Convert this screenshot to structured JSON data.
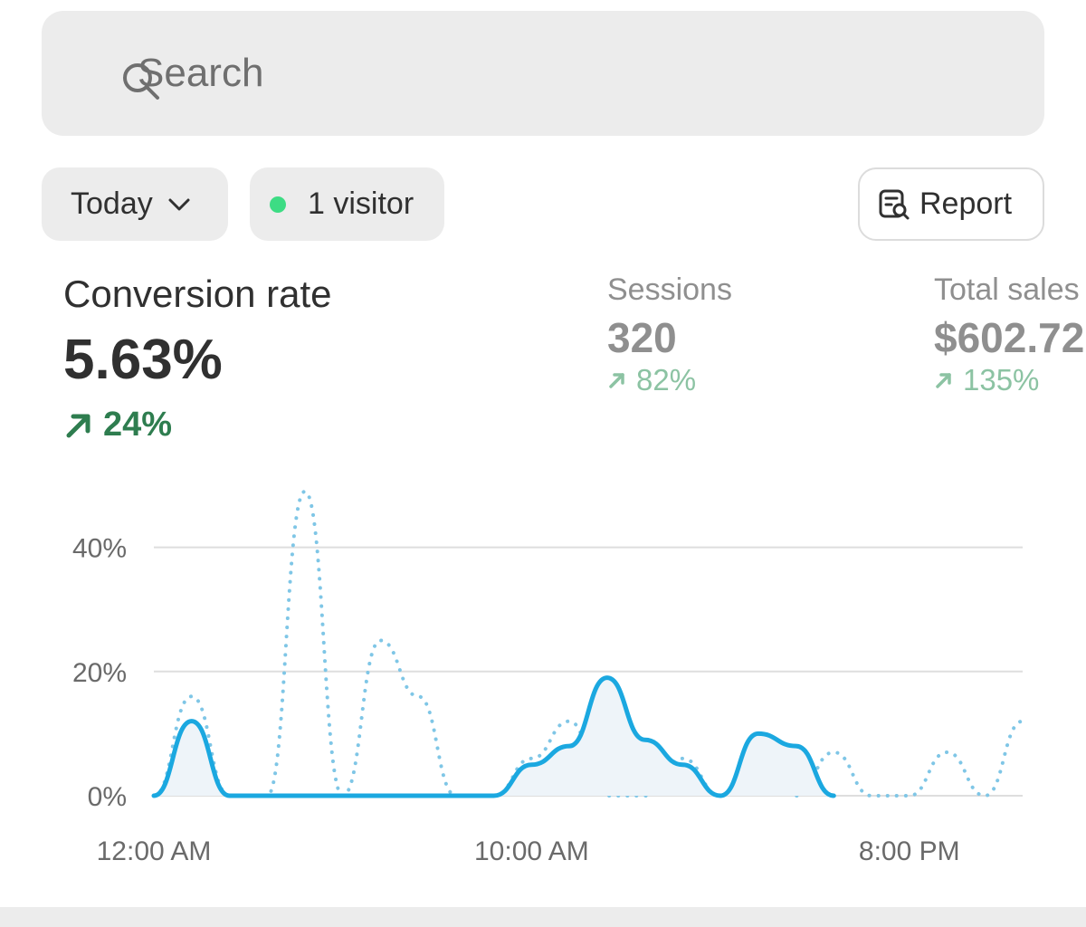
{
  "search": {
    "placeholder": "Search",
    "icon": "search-icon"
  },
  "filters": {
    "date_label": "Today",
    "visitor_label": "1 visitor",
    "visitor_dot_color": "#3ddc84",
    "report_label": "Report"
  },
  "metrics": {
    "conversion": {
      "title": "Conversion rate",
      "value": "5.63%",
      "change": "24%",
      "change_color": "#2e7d4f"
    },
    "sessions": {
      "title": "Sessions",
      "value": "320",
      "change": "82%",
      "change_color": "#8cc3a3"
    },
    "sales": {
      "title": "Total sales",
      "value": "$602.72",
      "change": "135%",
      "change_color": "#8cc3a3"
    }
  },
  "chart_data": {
    "type": "line",
    "x": [
      "12:00 AM",
      "1:00 AM",
      "2:00 AM",
      "3:00 AM",
      "4:00 AM",
      "5:00 AM",
      "6:00 AM",
      "7:00 AM",
      "8:00 AM",
      "9:00 AM",
      "10:00 AM",
      "11:00 AM",
      "12:00 PM",
      "1:00 PM",
      "2:00 PM",
      "3:00 PM",
      "4:00 PM",
      "5:00 PM",
      "6:00 PM",
      "7:00 PM",
      "8:00 PM",
      "9:00 PM",
      "10:00 PM",
      "11:00 PM"
    ],
    "x_tick_labels": [
      "12:00 AM",
      "10:00 AM",
      "8:00 PM"
    ],
    "y_tick_labels": [
      "0%",
      "20%",
      "40%"
    ],
    "ylim": [
      0,
      50
    ],
    "grid": true,
    "series": [
      {
        "style": "solid",
        "color": "#1ba8e0",
        "values": [
          0,
          12,
          0,
          0,
          0,
          0,
          0,
          0,
          0,
          0,
          5,
          8,
          19,
          9,
          5,
          0,
          10,
          8,
          0,
          null,
          null,
          null,
          null,
          null
        ]
      },
      {
        "style": "dotted",
        "color": "#7fc6e6",
        "values": [
          0,
          16,
          0,
          0,
          49,
          0,
          25,
          16,
          0,
          0,
          6,
          12,
          0,
          0,
          6,
          0,
          10,
          0,
          7,
          0,
          0,
          7,
          0,
          12
        ]
      }
    ]
  }
}
